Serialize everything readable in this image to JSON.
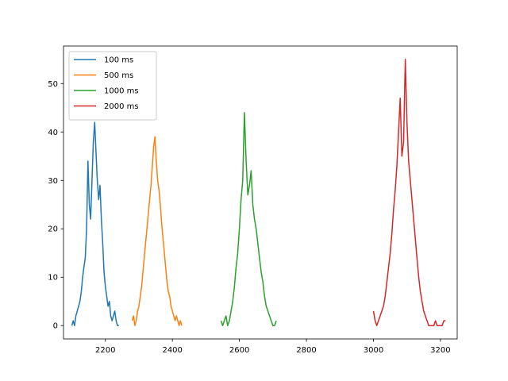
{
  "chart_data": {
    "type": "line",
    "title": "",
    "xlabel": "",
    "ylabel": "",
    "xlim": [
      2075,
      3250
    ],
    "ylim": [
      -2.75,
      57.75
    ],
    "xticks": [
      2200,
      2400,
      2600,
      2800,
      3000,
      3200
    ],
    "yticks": [
      0,
      10,
      20,
      30,
      40,
      50
    ],
    "xtick_labels": [
      "2200",
      "2400",
      "2600",
      "2800",
      "3000",
      "3200"
    ],
    "ytick_labels": [
      "0",
      "10",
      "20",
      "30",
      "40",
      "50"
    ],
    "grid": false,
    "legend_position": "upper-left",
    "series": [
      {
        "name": "100 ms",
        "color": "#1f77b4",
        "x": [
          2100,
          2104,
          2108,
          2112,
          2116,
          2120,
          2124,
          2128,
          2132,
          2136,
          2140,
          2144,
          2148,
          2152,
          2156,
          2160,
          2164,
          2168,
          2172,
          2176,
          2180,
          2184,
          2188,
          2192,
          2196,
          2200,
          2204,
          2208,
          2212,
          2216,
          2220,
          2224,
          2228,
          2232,
          2236,
          2240
        ],
        "y": [
          0,
          1,
          0,
          2,
          3,
          4,
          5,
          7,
          10,
          12,
          14,
          20,
          34,
          25,
          22,
          30,
          38,
          42,
          36,
          30,
          26,
          29,
          22,
          17,
          11,
          8,
          6,
          4,
          5,
          2,
          1,
          2,
          3,
          1,
          0,
          0
        ]
      },
      {
        "name": "500 ms",
        "color": "#ff7f0e",
        "x": [
          2280,
          2284,
          2288,
          2292,
          2296,
          2300,
          2304,
          2308,
          2312,
          2316,
          2320,
          2324,
          2328,
          2332,
          2336,
          2340,
          2344,
          2348,
          2352,
          2356,
          2360,
          2364,
          2368,
          2372,
          2376,
          2380,
          2384,
          2388,
          2392,
          2396,
          2400,
          2404,
          2408,
          2412,
          2416,
          2420,
          2424,
          2428
        ],
        "y": [
          1,
          2,
          0,
          1,
          3,
          4,
          6,
          8,
          11,
          14,
          17,
          20,
          23,
          26,
          29,
          33,
          37,
          39,
          34,
          30,
          28,
          25,
          21,
          18,
          15,
          12,
          9,
          7,
          6,
          4,
          3,
          2,
          1,
          2,
          1,
          0,
          1,
          0
        ]
      },
      {
        "name": "1000 ms",
        "color": "#2ca02c",
        "x": [
          2545,
          2550,
          2555,
          2560,
          2565,
          2570,
          2575,
          2580,
          2585,
          2590,
          2595,
          2600,
          2605,
          2610,
          2615,
          2620,
          2625,
          2630,
          2635,
          2640,
          2645,
          2650,
          2655,
          2660,
          2665,
          2670,
          2675,
          2680,
          2685,
          2690,
          2695,
          2700,
          2705,
          2710
        ],
        "y": [
          1,
          0,
          1,
          2,
          0,
          1,
          3,
          5,
          8,
          12,
          15,
          20,
          26,
          30,
          44,
          34,
          27,
          29,
          32,
          25,
          22,
          20,
          17,
          14,
          11,
          9,
          6,
          4,
          3,
          2,
          1,
          0,
          0,
          1
        ]
      },
      {
        "name": "2000 ms",
        "color": "#d62728",
        "x": [
          3000,
          3005,
          3010,
          3015,
          3020,
          3025,
          3030,
          3035,
          3040,
          3045,
          3050,
          3055,
          3060,
          3065,
          3070,
          3075,
          3080,
          3085,
          3090,
          3095,
          3100,
          3105,
          3110,
          3115,
          3120,
          3125,
          3130,
          3135,
          3140,
          3145,
          3150,
          3155,
          3160,
          3165,
          3170,
          3175,
          3180,
          3185,
          3190,
          3195,
          3200,
          3205,
          3210,
          3215
        ],
        "y": [
          3,
          1,
          0,
          1,
          2,
          3,
          4,
          6,
          9,
          12,
          15,
          19,
          24,
          28,
          33,
          40,
          47,
          35,
          38,
          55,
          42,
          34,
          30,
          26,
          22,
          18,
          14,
          10,
          7,
          5,
          3,
          2,
          1,
          0,
          0,
          0,
          0,
          1,
          0,
          0,
          0,
          0,
          1,
          1
        ]
      }
    ]
  }
}
